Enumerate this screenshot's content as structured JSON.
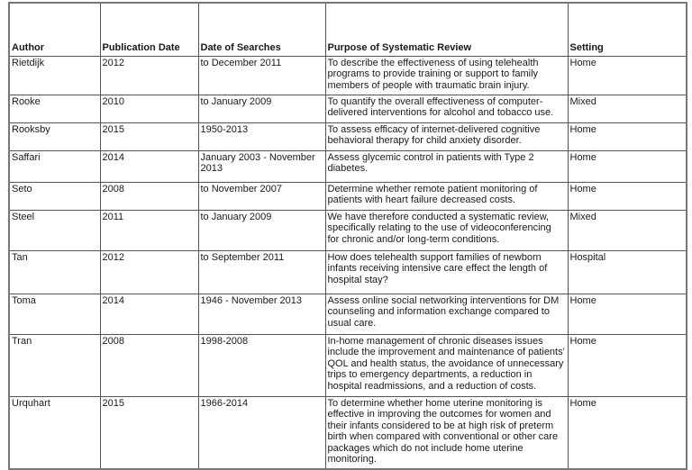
{
  "table": {
    "headers": [
      "Author",
      "Publication Date",
      "Date of Searches",
      "Purpose of Systematic Review",
      "Setting"
    ],
    "rows": [
      [
        "Rietdijk",
        "2012",
        "to December 2011",
        "To describe the effectiveness of using telehealth programs to provide training or support to family members of people with traumatic brain injury.",
        "Home"
      ],
      [
        "Rooke",
        "2010",
        "to January 2009",
        "To quantify the overall effectiveness of computer-delivered interventions for alcohol and tobacco use.",
        "Mixed"
      ],
      [
        "Rooksby",
        "2015",
        "1950-2013",
        "To assess efficacy of internet-delivered cognitive behavioral therapy for child anxiety disorder.",
        "Home"
      ],
      [
        "Saffari",
        "2014",
        "January 2003 - November 2013",
        "Assess glycemic control in patients with Type 2 diabetes.",
        "Home"
      ],
      [
        "Seto",
        "2008",
        "to November 2007",
        "Determine whether remote patient monitoring of patients with heart failure decreased costs.",
        "Home"
      ],
      [
        "Steel",
        "2011",
        "to January 2009",
        "We have therefore conducted a systematic review, specifically relating to the use of videoconferencing for chronic and/or long-term conditions.",
        "Mixed"
      ],
      [
        "Tan",
        "2012",
        "to September 2011",
        "How does telehealth support families of newborn infants receiving intensive care effect the length of hospital stay?",
        "Hospital"
      ],
      [
        "Toma",
        "2014",
        "1946 - November 2013",
        "Assess online social networking interventions for DM counseling and information exchange compared to usual care.",
        "Home"
      ],
      [
        "Tran",
        "2008",
        "1998-2008",
        "In-home management of chronic diseases issues include the improvement and maintenance of patients' QOL and health status, the avoidance of unnecessary trips to emergency departments, a reduction in hospital readmissions, and a reduction of costs.",
        "Home"
      ],
      [
        "Urquhart",
        "2015",
        "1966-2014",
        "To determine whether home uterine monitoring is effective in improving the outcomes for women and their infants considered to be at high risk of preterm birth when compared with conventional or other care packages which do not include home uterine monitoring.",
        "Home"
      ]
    ]
  }
}
